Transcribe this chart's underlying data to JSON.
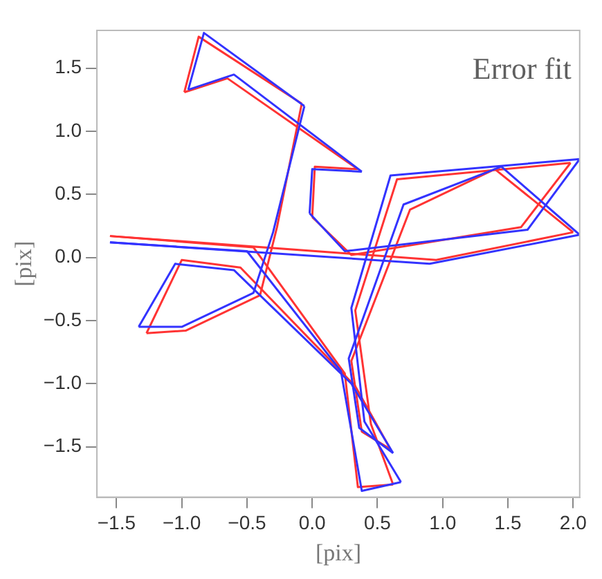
{
  "chart_data": {
    "type": "line",
    "annotations": [
      "Error fit"
    ],
    "xlabel": "[pix]",
    "ylabel": "[pix]",
    "xlim": [
      -1.65,
      2.05
    ],
    "ylim": [
      -1.9,
      1.8
    ],
    "xticks": [
      {
        "value": -1.5,
        "label": "−1.5"
      },
      {
        "value": -1,
        "label": "−1.0"
      },
      {
        "value": -0.5,
        "label": "−0.5"
      },
      {
        "value": 0,
        "label": "0.0"
      },
      {
        "value": 0.5,
        "label": "0.5"
      },
      {
        "value": 1,
        "label": "1.0"
      },
      {
        "value": 1.5,
        "label": "1.5"
      },
      {
        "value": 2,
        "label": "2.0"
      }
    ],
    "yticks": [
      {
        "value": -1.5,
        "label": "−1.5"
      },
      {
        "value": -1,
        "label": "−1.0"
      },
      {
        "value": -0.5,
        "label": "−0.5"
      },
      {
        "value": 0,
        "label": "0.0"
      },
      {
        "value": 0.5,
        "label": "0.5"
      },
      {
        "value": 1,
        "label": "1.0"
      },
      {
        "value": 1.5,
        "label": "1.5"
      }
    ],
    "grid": false,
    "legend": false,
    "marker": "none",
    "line_style": "solid",
    "series": [
      {
        "color": "#3333ff",
        "x": [
          -0.95,
          -0.83,
          -0.06
        ],
        "values": [
          1.33,
          1.78,
          1.2
        ]
      },
      {
        "color": "#3333ff",
        "x": [
          -0.06,
          -0.3,
          -0.45,
          -1.0,
          -1.33
        ],
        "values": [
          1.2,
          0.2,
          -0.28,
          -0.55,
          -0.55
        ]
      },
      {
        "color": "#3333ff",
        "x": [
          -1.33,
          -1.05,
          -0.6,
          0.3,
          0.62
        ],
        "values": [
          -0.55,
          -0.05,
          -0.1,
          -1.0,
          -1.55
        ]
      },
      {
        "color": "#3333ff",
        "x": [
          0.62,
          0.36,
          0.28,
          0.7,
          1.45,
          2.05
        ],
        "values": [
          -1.55,
          -1.35,
          -0.8,
          0.42,
          0.72,
          0.18
        ]
      },
      {
        "color": "#3333ff",
        "x": [
          2.05,
          0.9,
          -1.55
        ],
        "values": [
          0.18,
          -0.05,
          0.12
        ]
      },
      {
        "color": "#3333ff",
        "x": [
          -1.55,
          -0.5,
          0.22,
          0.38,
          0.68
        ],
        "values": [
          0.12,
          0.05,
          -0.9,
          -1.85,
          -1.78
        ]
      },
      {
        "color": "#3333ff",
        "x": [
          0.68,
          0.4,
          0.3,
          0.6,
          2.05
        ],
        "values": [
          -1.78,
          -1.3,
          -0.4,
          0.65,
          0.78
        ]
      },
      {
        "color": "#3333ff",
        "x": [
          2.05,
          1.65,
          0.25,
          -0.02
        ],
        "values": [
          0.78,
          0.22,
          0.05,
          0.35
        ]
      },
      {
        "color": "#3333ff",
        "x": [
          -0.02,
          0.0,
          0.38
        ],
        "values": [
          0.35,
          0.7,
          0.68
        ]
      },
      {
        "color": "#3333ff",
        "x": [
          0.38,
          -0.6,
          -0.95
        ],
        "values": [
          0.68,
          1.45,
          1.33
        ]
      },
      {
        "color": "#ff3333",
        "x": [
          -0.98,
          -0.87,
          -0.08
        ],
        "values": [
          1.31,
          1.75,
          1.22
        ]
      },
      {
        "color": "#ff3333",
        "x": [
          -0.08,
          -0.27,
          -0.4,
          -0.97,
          -1.27
        ],
        "values": [
          1.22,
          0.24,
          -0.3,
          -0.58,
          -0.6
        ]
      },
      {
        "color": "#ff3333",
        "x": [
          -1.27,
          -1.0,
          -0.55,
          0.33,
          0.6
        ],
        "values": [
          -0.6,
          -0.02,
          -0.08,
          -1.02,
          -1.52
        ]
      },
      {
        "color": "#ff3333",
        "x": [
          0.6,
          0.38,
          0.3,
          0.75,
          1.4,
          2.0
        ],
        "values": [
          -1.52,
          -1.38,
          -0.82,
          0.38,
          0.7,
          0.2
        ]
      },
      {
        "color": "#ff3333",
        "x": [
          2.0,
          0.95,
          -1.55
        ],
        "values": [
          0.2,
          -0.02,
          0.17
        ]
      },
      {
        "color": "#ff3333",
        "x": [
          -1.55,
          -0.45,
          0.25,
          0.35,
          0.62
        ],
        "values": [
          0.17,
          0.08,
          -0.92,
          -1.82,
          -1.8
        ]
      },
      {
        "color": "#ff3333",
        "x": [
          0.62,
          0.45,
          0.33,
          0.65,
          1.98
        ],
        "values": [
          -1.8,
          -1.32,
          -0.42,
          0.62,
          0.75
        ]
      },
      {
        "color": "#ff3333",
        "x": [
          1.98,
          1.6,
          0.3,
          0.0
        ],
        "values": [
          0.75,
          0.24,
          0.02,
          0.32
        ]
      },
      {
        "color": "#ff3333",
        "x": [
          0.0,
          0.02,
          0.35
        ],
        "values": [
          0.32,
          0.72,
          0.7
        ]
      },
      {
        "color": "#ff3333",
        "x": [
          0.35,
          -0.65,
          -0.98
        ],
        "values": [
          0.7,
          1.42,
          1.31
        ]
      }
    ]
  }
}
